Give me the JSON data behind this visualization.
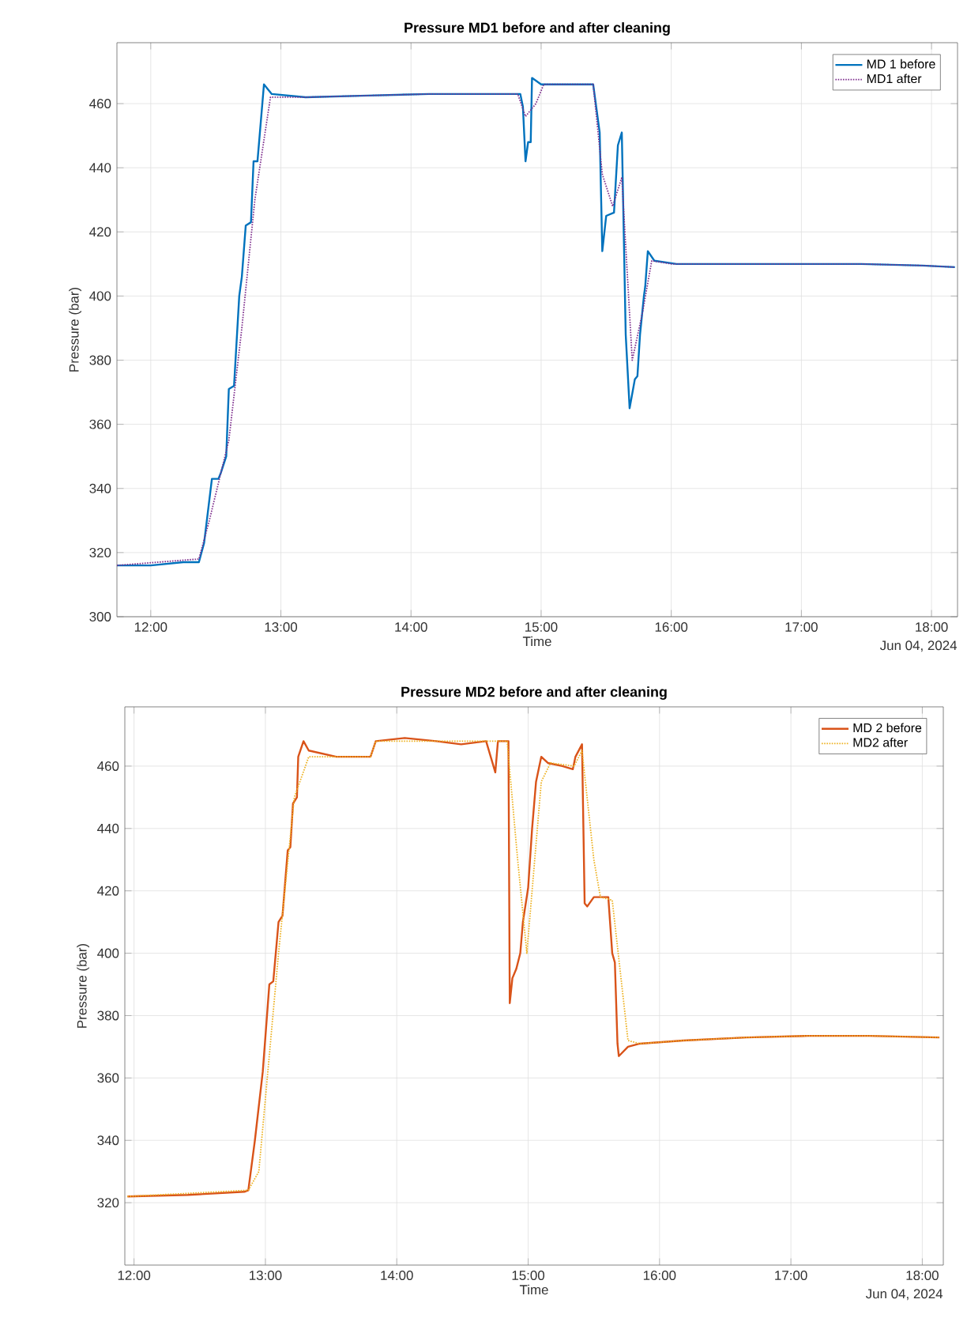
{
  "chart_data": [
    {
      "type": "line",
      "title": "Pressure MD1 before and after cleaning",
      "xlabel": "Time",
      "ylabel": "Pressure (bar)",
      "xlim": [
        11.74,
        18.2
      ],
      "ylim": [
        300,
        479
      ],
      "xticks": [
        {
          "value": 12,
          "label": "12:00"
        },
        {
          "value": 13,
          "label": "13:00"
        },
        {
          "value": 14,
          "label": "14:00"
        },
        {
          "value": 15,
          "label": "15:00"
        },
        {
          "value": 16,
          "label": "16:00"
        },
        {
          "value": 17,
          "label": "17:00"
        },
        {
          "value": 18,
          "label": "18:00"
        }
      ],
      "yticks": [
        300,
        320,
        340,
        360,
        380,
        400,
        420,
        440,
        460
      ],
      "grid": true,
      "legend": "top right",
      "annotations": [
        "Jun 04, 2024"
      ],
      "series": [
        {
          "name": "MD 1 before",
          "color": "#0072bd",
          "line_style": "solid",
          "x": [
            11.74,
            12.0,
            12.25,
            12.37,
            12.41,
            12.47,
            12.52,
            12.54,
            12.58,
            12.6,
            12.64,
            12.68,
            12.7,
            12.73,
            12.77,
            12.79,
            12.82,
            12.87,
            12.93,
            13.19,
            13.67,
            14.14,
            14.62,
            14.84,
            14.86,
            14.88,
            14.9,
            14.92,
            14.93,
            15.0,
            15.4,
            15.45,
            15.47,
            15.5,
            15.56,
            15.59,
            15.62,
            15.65,
            15.68,
            15.72,
            15.74,
            15.76,
            15.79,
            15.8,
            15.82,
            15.87,
            16.04,
            16.51,
            16.99,
            17.46,
            17.93,
            18.18
          ],
          "values": [
            316,
            316,
            317,
            317,
            323,
            343,
            343,
            345,
            350,
            371,
            372,
            400,
            406,
            422,
            423,
            442,
            442,
            466,
            463,
            462,
            462.5,
            463,
            463,
            463,
            459,
            442,
            448,
            448,
            468,
            466,
            466,
            451,
            414,
            425,
            426,
            447,
            451,
            388,
            365,
            374,
            375,
            388,
            400,
            403,
            414,
            411,
            410,
            410,
            410,
            410,
            409.5,
            409
          ]
        },
        {
          "name": "MD1 after",
          "color": "#7e2f8e",
          "line_style": "dotted",
          "x": [
            11.74,
            12.37,
            12.45,
            12.6,
            12.7,
            12.8,
            12.92,
            13.2,
            13.67,
            14.14,
            14.82,
            14.88,
            14.96,
            15.02,
            15.4,
            15.47,
            15.55,
            15.62,
            15.7,
            15.78,
            15.85,
            16.0,
            16.51,
            16.99,
            17.46,
            17.93,
            18.18
          ],
          "values": [
            316,
            318,
            330,
            355,
            390,
            430,
            462,
            462,
            462.5,
            463,
            463,
            456,
            460,
            466,
            466,
            438,
            428,
            437,
            380,
            395,
            411,
            410,
            410,
            410,
            410,
            409.5,
            409
          ]
        }
      ]
    },
    {
      "type": "line",
      "title": "Pressure MD2 before and after cleaning",
      "xlabel": "Time",
      "ylabel": "Pressure (bar)",
      "xlim": [
        11.93,
        18.16
      ],
      "ylim": [
        300,
        479
      ],
      "xticks": [
        {
          "value": 12,
          "label": "12:00"
        },
        {
          "value": 13,
          "label": "13:00"
        },
        {
          "value": 14,
          "label": "14:00"
        },
        {
          "value": 15,
          "label": "15:00"
        },
        {
          "value": 16,
          "label": "16:00"
        },
        {
          "value": 17,
          "label": "17:00"
        },
        {
          "value": 18,
          "label": "18:00"
        }
      ],
      "yticks": [
        320,
        340,
        360,
        380,
        400,
        420,
        440,
        460
      ],
      "grid": true,
      "legend": "top right",
      "annotations": [
        "Jun 04, 2024"
      ],
      "series": [
        {
          "name": "MD 2 before",
          "color": "#d95319",
          "line_style": "solid",
          "x": [
            11.95,
            12.41,
            12.84,
            12.87,
            12.92,
            12.98,
            13.03,
            13.06,
            13.1,
            13.13,
            13.17,
            13.19,
            13.21,
            13.24,
            13.25,
            13.29,
            13.33,
            13.54,
            13.8,
            13.84,
            14.06,
            14.3,
            14.49,
            14.68,
            14.75,
            14.77,
            14.84,
            14.85,
            14.86,
            14.88,
            14.91,
            14.94,
            14.96,
            15.0,
            15.03,
            15.06,
            15.1,
            15.15,
            15.26,
            15.34,
            15.36,
            15.41,
            15.43,
            15.45,
            15.5,
            15.61,
            15.64,
            15.66,
            15.68,
            15.69,
            15.76,
            15.85,
            16.18,
            16.66,
            17.13,
            17.6,
            18.13
          ],
          "values": [
            322,
            322.5,
            323.5,
            324,
            340,
            362,
            390,
            391,
            410,
            412,
            433,
            434,
            448,
            450,
            463,
            468,
            465,
            463,
            463,
            468,
            469,
            468,
            467,
            468,
            458,
            468,
            468,
            468,
            384,
            392,
            395,
            400,
            410,
            421,
            440,
            455,
            463,
            461,
            460,
            459,
            463,
            467,
            416,
            415,
            418,
            418,
            400,
            397,
            371,
            367,
            370,
            371,
            372,
            373,
            373.5,
            373.5,
            373
          ]
        },
        {
          "name": "MD2 after",
          "color": "#edb120",
          "line_style": "dotted",
          "x": [
            11.95,
            12.87,
            12.95,
            13.1,
            13.22,
            13.33,
            13.8,
            13.84,
            14.84,
            14.92,
            14.99,
            15.1,
            15.17,
            15.35,
            15.41,
            15.5,
            15.55,
            15.64,
            15.76,
            15.85,
            16.18,
            16.66,
            17.13,
            17.6,
            18.13
          ],
          "values": [
            322,
            324,
            330,
            400,
            450,
            463,
            463,
            468,
            468,
            430,
            400,
            455,
            461,
            460,
            465,
            430,
            418,
            417,
            372,
            371,
            372,
            373,
            373.5,
            373.5,
            373
          ]
        }
      ]
    }
  ]
}
